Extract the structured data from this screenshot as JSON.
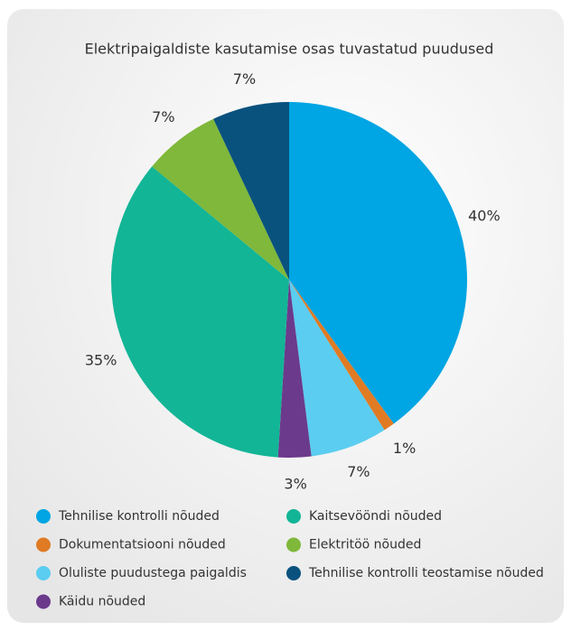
{
  "chart_data": {
    "type": "pie",
    "title": "Elektripaigaldiste kasutamise osas tuvastatud puudused",
    "categories": [
      "Tehnilise kontrolli nõuded",
      "Dokumentatsiooni nõuded",
      "Oluliste puudustega paigaldis",
      "Käidu nõuded",
      "Kaitsevööndi nõuded",
      "Elektritöö nõuded",
      "Tehnilise kontrolli teostamise nõuded"
    ],
    "values": [
      40,
      1,
      7,
      3,
      35,
      7,
      7
    ],
    "value_labels": [
      "40%",
      "1%",
      "7%",
      "3%",
      "35%",
      "7%",
      "7%"
    ],
    "colors": [
      "#00a5e3",
      "#e07b24",
      "#5bcdf0",
      "#6b3a8c",
      "#12b596",
      "#7fb83a",
      "#0a527e"
    ]
  }
}
